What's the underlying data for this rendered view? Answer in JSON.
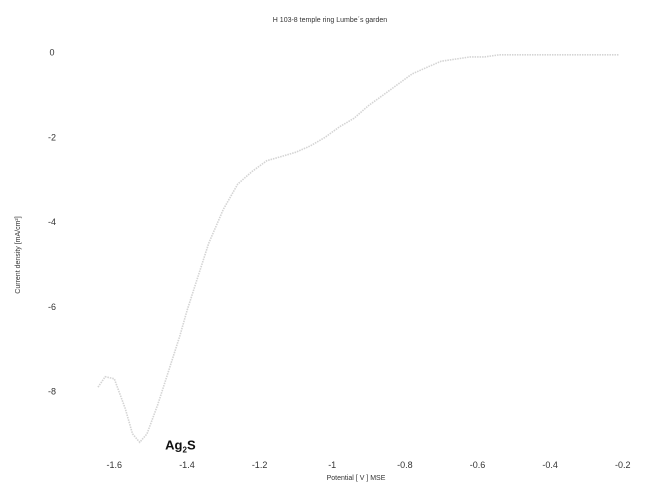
{
  "chart_data": {
    "type": "line",
    "title": "H 103-8 temple ring  Lumbe´s garden",
    "xlabel": "Potential [ V ]    MSE",
    "ylabel": "Current density [mA/cm²]",
    "xlim": [
      -1.7,
      -0.18
    ],
    "ylim": [
      -9.5,
      0.3
    ],
    "xticks": [
      "-1.6",
      "-1.4",
      "-1.2",
      "-1",
      "-0.8",
      "-0.6",
      "-0.4",
      "-0.2"
    ],
    "yticks": [
      "0",
      "-2",
      "-4",
      "-6",
      "-8"
    ],
    "xtick_values": [
      -1.6,
      -1.4,
      -1.2,
      -1.0,
      -0.8,
      -0.6,
      -0.4,
      -0.2
    ],
    "ytick_values": [
      0,
      -2,
      -4,
      -6,
      -8
    ],
    "grid": false,
    "annotation": {
      "text": "Ag",
      "sub": "2",
      "suffix": "S",
      "x": -1.46,
      "y": -9.25
    },
    "series": [
      {
        "color": "#d4d4d4",
        "x": [
          -1.645,
          -1.625,
          -1.6,
          -1.57,
          -1.55,
          -1.53,
          -1.51,
          -1.48,
          -1.45,
          -1.42,
          -1.4,
          -1.37,
          -1.34,
          -1.3,
          -1.26,
          -1.22,
          -1.18,
          -1.14,
          -1.1,
          -1.06,
          -1.02,
          -0.98,
          -0.94,
          -0.9,
          -0.86,
          -0.82,
          -0.78,
          -0.74,
          -0.7,
          -0.66,
          -0.62,
          -0.58,
          -0.54,
          -0.5,
          -0.45,
          -0.4,
          -0.35,
          -0.3,
          -0.25,
          -0.21
        ],
        "y": [
          -7.9,
          -7.65,
          -7.7,
          -8.4,
          -9.0,
          -9.2,
          -9.0,
          -8.3,
          -7.5,
          -6.7,
          -6.1,
          -5.3,
          -4.5,
          -3.7,
          -3.1,
          -2.8,
          -2.55,
          -2.45,
          -2.35,
          -2.2,
          -2.0,
          -1.75,
          -1.55,
          -1.25,
          -1.0,
          -0.75,
          -0.5,
          -0.35,
          -0.2,
          -0.15,
          -0.1,
          -0.1,
          -0.05,
          -0.05,
          -0.05,
          -0.05,
          -0.05,
          -0.05,
          -0.05,
          -0.05
        ]
      }
    ]
  }
}
